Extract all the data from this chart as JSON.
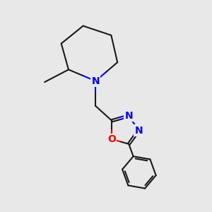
{
  "background_color": "#e8e8e8",
  "bond_color": "#1a1a1a",
  "nitrogen_color": "#0000ff",
  "oxygen_color": "#ff0000",
  "bond_width": 1.5,
  "dbo": 0.055,
  "figsize": [
    3.0,
    3.0
  ],
  "dpi": 100,
  "xlim": [
    0,
    10
  ],
  "ylim": [
    0,
    10
  ]
}
